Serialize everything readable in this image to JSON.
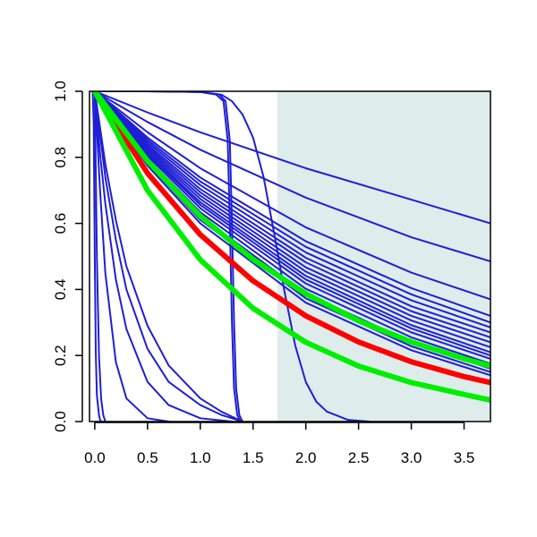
{
  "chart_data": {
    "type": "line",
    "title": "",
    "xlabel": "",
    "ylabel": "",
    "xlim": [
      -0.05,
      3.75
    ],
    "ylim": [
      0.0,
      1.0
    ],
    "x_ticks": [
      "0.0",
      "0.5",
      "1.0",
      "1.5",
      "2.0",
      "2.5",
      "3.0",
      "3.5"
    ],
    "y_ticks": [
      "0.0",
      "0.2",
      "0.4",
      "0.6",
      "0.8",
      "1.0"
    ],
    "grid": false,
    "shaded_region": {
      "x_from": 1.73,
      "x_to": 3.75,
      "color": "#dfecec"
    },
    "colors": {
      "blue": "#1f1fd6",
      "red": "#ff0000",
      "green": "#00ee00"
    },
    "series": [
      {
        "color": "blue",
        "width": 2,
        "x": [
          0,
          0.5,
          1.0,
          2.0,
          3.0,
          3.75
        ],
        "y": [
          1.0,
          0.936,
          0.876,
          0.767,
          0.672,
          0.6
        ]
      },
      {
        "color": "blue",
        "width": 2,
        "x": [
          0,
          0.5,
          1.0,
          2.0,
          3.0,
          3.75
        ],
        "y": [
          1.0,
          0.907,
          0.823,
          0.678,
          0.558,
          0.485
        ]
      },
      {
        "color": "blue",
        "width": 2,
        "x": [
          0,
          0.5,
          1.0,
          2.0,
          3.0,
          3.75
        ],
        "y": [
          1.0,
          0.876,
          0.767,
          0.588,
          0.451,
          0.37
        ]
      },
      {
        "color": "blue",
        "width": 2,
        "x": [
          0,
          0.5,
          1.0,
          2.0,
          3.0,
          3.75
        ],
        "y": [
          1.0,
          0.86,
          0.739,
          0.546,
          0.404,
          0.32
        ]
      },
      {
        "color": "blue",
        "width": 2,
        "x": [
          0,
          0.5,
          1.0,
          2.0,
          3.0,
          3.75
        ],
        "y": [
          1.0,
          0.853,
          0.727,
          0.529,
          0.385,
          0.3
        ]
      },
      {
        "color": "blue",
        "width": 2,
        "x": [
          0,
          0.5,
          1.0,
          2.0,
          3.0,
          3.75
        ],
        "y": [
          1.0,
          0.846,
          0.716,
          0.512,
          0.367,
          0.285
        ]
      },
      {
        "color": "blue",
        "width": 2,
        "x": [
          0,
          0.5,
          1.0,
          2.0,
          3.0,
          3.75
        ],
        "y": [
          1.0,
          0.839,
          0.704,
          0.496,
          0.349,
          0.27
        ]
      },
      {
        "color": "blue",
        "width": 2,
        "x": [
          0,
          0.5,
          1.0,
          2.0,
          3.0,
          3.75
        ],
        "y": [
          1.0,
          0.833,
          0.694,
          0.482,
          0.334,
          0.255
        ]
      },
      {
        "color": "blue",
        "width": 2,
        "x": [
          0,
          0.5,
          1.0,
          2.0,
          3.0,
          3.75
        ],
        "y": [
          1.0,
          0.827,
          0.684,
          0.467,
          0.32,
          0.24
        ]
      },
      {
        "color": "blue",
        "width": 2,
        "x": [
          0,
          0.5,
          1.0,
          2.0,
          3.0,
          3.75
        ],
        "y": [
          1.0,
          0.821,
          0.674,
          0.454,
          0.306,
          0.225
        ]
      },
      {
        "color": "blue",
        "width": 2,
        "x": [
          0,
          0.5,
          1.0,
          2.0,
          3.0,
          3.75
        ],
        "y": [
          1.0,
          0.815,
          0.664,
          0.441,
          0.292,
          0.21
        ]
      },
      {
        "color": "blue",
        "width": 2,
        "x": [
          0,
          0.5,
          1.0,
          2.0,
          3.0,
          3.75
        ],
        "y": [
          1.0,
          0.81,
          0.656,
          0.43,
          0.282,
          0.2
        ]
      },
      {
        "color": "blue",
        "width": 2,
        "x": [
          0,
          0.5,
          1.0,
          2.0,
          3.0,
          3.75
        ],
        "y": [
          1.0,
          0.804,
          0.646,
          0.418,
          0.27,
          0.19
        ]
      },
      {
        "color": "blue",
        "width": 2,
        "x": [
          0,
          0.5,
          1.0,
          2.0,
          3.0,
          3.75
        ],
        "y": [
          1.0,
          0.796,
          0.634,
          0.402,
          0.255,
          0.175
        ]
      },
      {
        "color": "blue",
        "width": 2,
        "x": [
          0,
          0.5,
          1.0,
          2.0,
          3.0,
          3.75
        ],
        "y": [
          1.0,
          0.789,
          0.622,
          0.387,
          0.241,
          0.16
        ]
      },
      {
        "color": "blue",
        "width": 2,
        "x": [
          0,
          0.5,
          1.0,
          2.0,
          3.0,
          3.75
        ],
        "y": [
          1.0,
          0.782,
          0.611,
          0.373,
          0.228,
          0.15
        ]
      },
      {
        "color": "blue",
        "width": 2,
        "x": [
          0,
          0.5,
          1.0,
          2.0,
          3.0,
          3.75
        ],
        "y": [
          1.0,
          0.775,
          0.6,
          0.36,
          0.216,
          0.14
        ]
      },
      {
        "color": "blue",
        "width": 2,
        "x": [
          -0.02,
          -0.01,
          0.0,
          0.01,
          0.02,
          0.04,
          0.05,
          0.06
        ],
        "y": [
          1.0,
          0.9,
          0.5,
          0.2,
          0.08,
          0.02,
          0.005,
          0.0
        ]
      },
      {
        "color": "blue",
        "width": 2,
        "x": [
          0,
          0.02,
          0.04,
          0.06,
          0.08,
          0.1
        ],
        "y": [
          1.0,
          0.5,
          0.2,
          0.07,
          0.02,
          0.0
        ]
      },
      {
        "color": "blue",
        "width": 2,
        "x": [
          0,
          0.05,
          0.1,
          0.2,
          0.3,
          0.5,
          0.7
        ],
        "y": [
          1.0,
          0.7,
          0.45,
          0.18,
          0.07,
          0.01,
          0.0
        ]
      },
      {
        "color": "blue",
        "width": 2,
        "x": [
          0,
          0.05,
          0.1,
          0.2,
          0.3,
          0.5,
          0.7,
          1.0,
          1.3
        ],
        "y": [
          1.0,
          0.81,
          0.66,
          0.43,
          0.28,
          0.12,
          0.05,
          0.01,
          0.0
        ]
      },
      {
        "color": "blue",
        "width": 2,
        "x": [
          0,
          0.1,
          0.2,
          0.3,
          0.5,
          0.7,
          1.0,
          1.2,
          1.4
        ],
        "y": [
          1.0,
          0.74,
          0.55,
          0.4,
          0.22,
          0.12,
          0.05,
          0.02,
          0.0
        ]
      },
      {
        "color": "blue",
        "width": 2,
        "x": [
          0,
          0.1,
          0.2,
          0.3,
          0.5,
          0.7,
          1.0,
          1.2,
          1.4
        ],
        "y": [
          1.0,
          0.78,
          0.61,
          0.47,
          0.29,
          0.17,
          0.07,
          0.03,
          0.0
        ]
      },
      {
        "color": "blue",
        "width": 2,
        "x": [
          0,
          0.5,
          1.0,
          1.15,
          1.22,
          1.26,
          1.28,
          1.3,
          1.32,
          1.35,
          1.38
        ],
        "y": [
          1.0,
          1.0,
          0.998,
          0.99,
          0.97,
          0.85,
          0.6,
          0.3,
          0.1,
          0.02,
          0.0
        ]
      },
      {
        "color": "blue",
        "width": 2,
        "x": [
          0,
          0.5,
          1.0,
          1.18,
          1.24,
          1.28,
          1.3,
          1.32,
          1.34,
          1.37,
          1.4
        ],
        "y": [
          1.0,
          1.0,
          0.998,
          0.99,
          0.97,
          0.85,
          0.6,
          0.3,
          0.1,
          0.02,
          0.0
        ]
      },
      {
        "color": "blue",
        "width": 2,
        "x": [
          0,
          0.5,
          1.0,
          1.2,
          1.3,
          1.4,
          1.5,
          1.6,
          1.7,
          1.8,
          1.9,
          2.0,
          2.1,
          2.2,
          2.4,
          2.6
        ],
        "y": [
          1.0,
          1.0,
          0.998,
          0.99,
          0.97,
          0.93,
          0.86,
          0.74,
          0.57,
          0.39,
          0.23,
          0.12,
          0.06,
          0.03,
          0.005,
          0.0
        ]
      },
      {
        "color": "red",
        "width": 6,
        "x": [
          0,
          0.5,
          1.0,
          1.5,
          2.0,
          2.5,
          3.0,
          3.5,
          3.75
        ],
        "y": [
          1.0,
          0.752,
          0.566,
          0.426,
          0.32,
          0.241,
          0.181,
          0.136,
          0.118
        ]
      },
      {
        "color": "green",
        "width": 6,
        "x": [
          0,
          0.5,
          1.0,
          1.5,
          2.0,
          2.5,
          3.0,
          3.5,
          3.75
        ],
        "y": [
          1.0,
          0.789,
          0.622,
          0.491,
          0.387,
          0.305,
          0.241,
          0.19,
          0.168
        ]
      },
      {
        "color": "green",
        "width": 6,
        "x": [
          0,
          0.5,
          1.0,
          1.5,
          2.0,
          2.5,
          3.0,
          3.5,
          3.75
        ],
        "y": [
          1.0,
          0.7,
          0.49,
          0.343,
          0.24,
          0.168,
          0.118,
          0.082,
          0.065
        ]
      }
    ]
  }
}
